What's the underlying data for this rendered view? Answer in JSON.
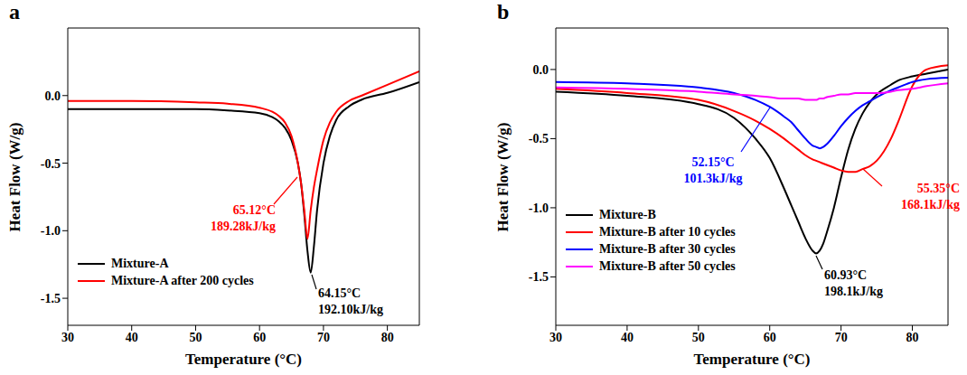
{
  "chart_data": [
    {
      "type": "line",
      "title": "a",
      "x_label": "Temperature (°C)",
      "y_label": "Heat Flow (W/g)",
      "xlim": [
        30,
        85
      ],
      "xticks": [
        30,
        40,
        50,
        60,
        70,
        80
      ],
      "ylim": [
        -1.7,
        0.5
      ],
      "yticks": [
        -1.5,
        {
          "value": -1,
          "label": "-1.0"
        },
        -0.5,
        {
          "value": 0,
          "label": "0.0"
        }
      ],
      "grid": false,
      "legend": "lower left",
      "x": [
        30,
        40,
        50,
        55,
        60,
        62,
        63,
        64,
        65,
        66,
        66.5,
        67,
        67.5,
        68,
        68.5,
        69,
        70,
        71,
        72,
        74,
        76,
        80,
        85
      ],
      "series": [
        {
          "name": "Mixture-A",
          "color": "#000000",
          "annotation": [
            "64.15°C",
            "192.10kJ/kg"
          ],
          "values": [
            -0.1,
            -0.1,
            -0.1,
            -0.11,
            -0.13,
            -0.16,
            -0.19,
            -0.24,
            -0.33,
            -0.5,
            -0.65,
            -0.88,
            -1.15,
            -1.31,
            -1.12,
            -0.85,
            -0.5,
            -0.3,
            -0.18,
            -0.08,
            -0.03,
            0.02,
            0.1
          ]
        },
        {
          "name": "Mixture-A after 200 cycles",
          "color": "#ff0000",
          "annotation": [
            "65.12°C",
            "189.28kJ/kg"
          ],
          "values": [
            -0.04,
            -0.04,
            -0.05,
            -0.06,
            -0.09,
            -0.12,
            -0.15,
            -0.2,
            -0.3,
            -0.5,
            -0.65,
            -0.85,
            -1.06,
            -0.85,
            -0.68,
            -0.55,
            -0.33,
            -0.2,
            -0.12,
            -0.04,
            0.0,
            0.08,
            0.18
          ]
        }
      ]
    },
    {
      "type": "line",
      "title": "b",
      "x_label": "Temperature (°C)",
      "y_label": "Heat Flow (W/g)",
      "xlim": [
        30,
        85
      ],
      "xticks": [
        30,
        40,
        50,
        60,
        70,
        80
      ],
      "ylim": [
        -1.85,
        0.3
      ],
      "yticks": [
        -1.5,
        {
          "value": -1,
          "label": "-1.0"
        },
        -0.5,
        {
          "value": 0,
          "label": "0.0"
        }
      ],
      "grid": false,
      "legend": "lower left",
      "x": [
        30,
        40,
        50,
        55,
        58,
        60,
        62,
        63,
        64,
        65,
        66,
        66.5,
        67,
        67.5,
        68,
        69,
        70,
        71,
        72,
        73,
        74,
        75,
        77,
        78,
        80,
        82,
        85
      ],
      "series": [
        {
          "name": "Mixture-B",
          "color": "#000000",
          "annotation": [
            "60.93°C",
            "198.1kJ/kg"
          ],
          "values": [
            -0.16,
            -0.19,
            -0.25,
            -0.35,
            -0.5,
            -0.64,
            -0.86,
            -0.98,
            -1.1,
            -1.22,
            -1.31,
            -1.33,
            -1.31,
            -1.26,
            -1.18,
            -1.0,
            -0.78,
            -0.58,
            -0.43,
            -0.32,
            -0.24,
            -0.18,
            -0.11,
            -0.08,
            -0.05,
            -0.03,
            0.0
          ]
        },
        {
          "name": "Mixture-B after 10 cycles",
          "color": "#ff0000",
          "annotation": [
            "55.35°C",
            "168.1kJ/kg"
          ],
          "values": [
            -0.14,
            -0.17,
            -0.22,
            -0.3,
            -0.37,
            -0.43,
            -0.5,
            -0.54,
            -0.58,
            -0.62,
            -0.65,
            -0.66,
            -0.67,
            -0.68,
            -0.69,
            -0.71,
            -0.73,
            -0.74,
            -0.74,
            -0.72,
            -0.7,
            -0.66,
            -0.5,
            -0.38,
            -0.12,
            0.0,
            0.03
          ]
        },
        {
          "name": "Mixture-B after 30 cycles",
          "color": "#0000ff",
          "annotation": [
            "52.15°C",
            "101.3kJ/kg"
          ],
          "values": [
            -0.09,
            -0.1,
            -0.13,
            -0.17,
            -0.22,
            -0.27,
            -0.34,
            -0.38,
            -0.44,
            -0.5,
            -0.55,
            -0.56,
            -0.57,
            -0.56,
            -0.54,
            -0.48,
            -0.41,
            -0.35,
            -0.3,
            -0.26,
            -0.23,
            -0.2,
            -0.15,
            -0.13,
            -0.09,
            -0.07,
            -0.06
          ]
        },
        {
          "name": "Mixture-B after 50 cycles",
          "color": "#ff00ff",
          "values": [
            -0.13,
            -0.14,
            -0.16,
            -0.18,
            -0.19,
            -0.2,
            -0.21,
            -0.21,
            -0.21,
            -0.22,
            -0.22,
            -0.22,
            -0.21,
            -0.21,
            -0.2,
            -0.19,
            -0.18,
            -0.18,
            -0.17,
            -0.17,
            -0.17,
            -0.17,
            -0.16,
            -0.15,
            -0.14,
            -0.12,
            -0.1
          ]
        }
      ]
    }
  ]
}
